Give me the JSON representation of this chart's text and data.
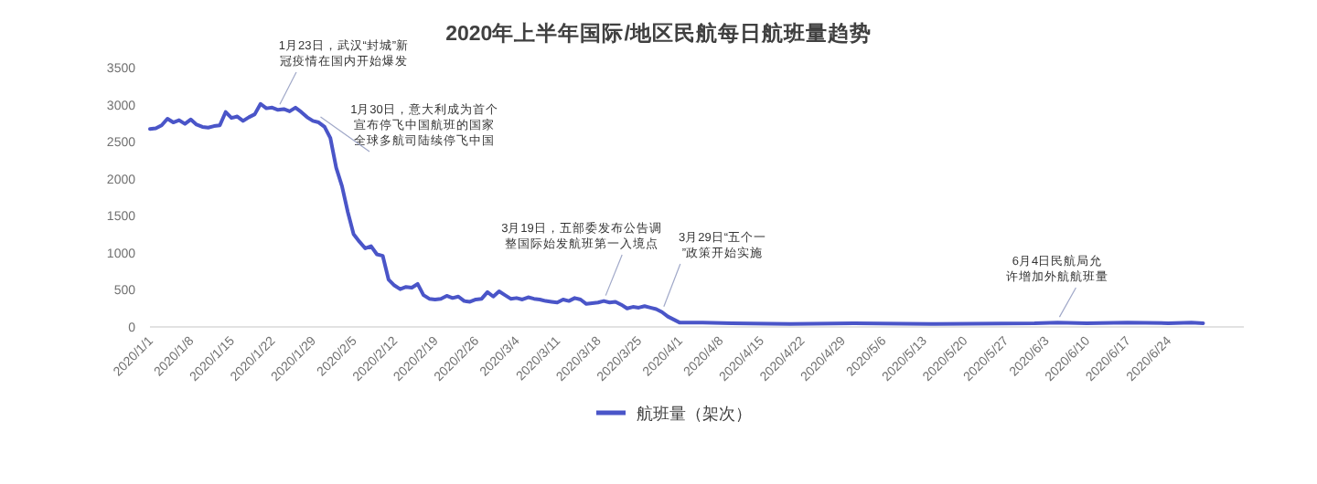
{
  "chart_data": {
    "type": "line",
    "title": "2020年上半年国际/地区民航每日航班量趋势",
    "x": [
      "2020-01-01",
      "2020-01-02",
      "2020-01-03",
      "2020-01-04",
      "2020-01-05",
      "2020-01-06",
      "2020-01-07",
      "2020-01-08",
      "2020-01-09",
      "2020-01-10",
      "2020-01-11",
      "2020-01-12",
      "2020-01-13",
      "2020-01-14",
      "2020-01-15",
      "2020-01-16",
      "2020-01-17",
      "2020-01-18",
      "2020-01-19",
      "2020-01-20",
      "2020-01-21",
      "2020-01-22",
      "2020-01-23",
      "2020-01-24",
      "2020-01-25",
      "2020-01-26",
      "2020-01-27",
      "2020-01-28",
      "2020-01-29",
      "2020-01-30",
      "2020-01-31",
      "2020-02-01",
      "2020-02-02",
      "2020-02-03",
      "2020-02-04",
      "2020-02-05",
      "2020-02-06",
      "2020-02-07",
      "2020-02-08",
      "2020-02-09",
      "2020-02-10",
      "2020-02-11",
      "2020-02-12",
      "2020-02-13",
      "2020-02-14",
      "2020-02-15",
      "2020-02-16",
      "2020-02-17",
      "2020-02-18",
      "2020-02-19",
      "2020-02-20",
      "2020-02-21",
      "2020-02-22",
      "2020-02-23",
      "2020-02-24",
      "2020-02-25",
      "2020-02-26",
      "2020-02-27",
      "2020-02-28",
      "2020-02-29",
      "2020-03-01",
      "2020-03-02",
      "2020-03-03",
      "2020-03-04",
      "2020-03-05",
      "2020-03-06",
      "2020-03-07",
      "2020-03-08",
      "2020-03-09",
      "2020-03-10",
      "2020-03-11",
      "2020-03-12",
      "2020-03-13",
      "2020-03-14",
      "2020-03-15",
      "2020-03-16",
      "2020-03-17",
      "2020-03-18",
      "2020-03-19",
      "2020-03-20",
      "2020-03-21",
      "2020-03-22",
      "2020-03-23",
      "2020-03-24",
      "2020-03-25",
      "2020-03-26",
      "2020-03-27",
      "2020-03-28",
      "2020-03-29",
      "2020-03-30",
      "2020-03-31",
      "2020-04-01",
      "2020-04-05",
      "2020-04-10",
      "2020-04-20",
      "2020-05-01",
      "2020-05-15",
      "2020-06-01",
      "2020-06-05",
      "2020-06-10",
      "2020-06-17",
      "2020-06-24",
      "2020-06-28",
      "2020-06-30"
    ],
    "series": [
      {
        "name": "航班量（架次）",
        "color": "#4a55c8",
        "values": [
          2670,
          2680,
          2720,
          2810,
          2760,
          2790,
          2740,
          2800,
          2730,
          2700,
          2690,
          2710,
          2720,
          2900,
          2820,
          2840,
          2780,
          2830,
          2870,
          3010,
          2950,
          2960,
          2930,
          2940,
          2910,
          2960,
          2900,
          2830,
          2780,
          2760,
          2700,
          2550,
          2150,
          1900,
          1550,
          1250,
          1150,
          1060,
          1090,
          980,
          960,
          640,
          560,
          510,
          540,
          530,
          580,
          430,
          380,
          370,
          380,
          420,
          390,
          410,
          350,
          340,
          370,
          380,
          470,
          410,
          480,
          430,
          380,
          390,
          370,
          400,
          380,
          370,
          350,
          340,
          330,
          370,
          350,
          390,
          370,
          310,
          320,
          330,
          350,
          330,
          340,
          300,
          250,
          270,
          260,
          280,
          260,
          240,
          200,
          140,
          100,
          60,
          60,
          50,
          40,
          50,
          40,
          50,
          60,
          50,
          60,
          50,
          60,
          50
        ]
      }
    ],
    "xlim": [
      "2020-01-01",
      "2020-07-07"
    ],
    "xticks": [
      {
        "value": "2020-01-01",
        "label": "2020/1/1"
      },
      {
        "value": "2020-01-08",
        "label": "2020/1/8"
      },
      {
        "value": "2020-01-15",
        "label": "2020/1/15"
      },
      {
        "value": "2020-01-22",
        "label": "2020/1/22"
      },
      {
        "value": "2020-01-29",
        "label": "2020/1/29"
      },
      {
        "value": "2020-02-05",
        "label": "2020/2/5"
      },
      {
        "value": "2020-02-12",
        "label": "2020/2/12"
      },
      {
        "value": "2020-02-19",
        "label": "2020/2/19"
      },
      {
        "value": "2020-02-26",
        "label": "2020/2/26"
      },
      {
        "value": "2020-03-04",
        "label": "2020/3/4"
      },
      {
        "value": "2020-03-11",
        "label": "2020/3/11"
      },
      {
        "value": "2020-03-18",
        "label": "2020/3/18"
      },
      {
        "value": "2020-03-25",
        "label": "2020/3/25"
      },
      {
        "value": "2020-04-01",
        "label": "2020/4/1"
      },
      {
        "value": "2020-04-08",
        "label": "2020/4/8"
      },
      {
        "value": "2020-04-15",
        "label": "2020/4/15"
      },
      {
        "value": "2020-04-22",
        "label": "2020/4/22"
      },
      {
        "value": "2020-04-29",
        "label": "2020/4/29"
      },
      {
        "value": "2020-05-06",
        "label": "2020/5/6"
      },
      {
        "value": "2020-05-13",
        "label": "2020/5/13"
      },
      {
        "value": "2020-05-20",
        "label": "2020/5/20"
      },
      {
        "value": "2020-05-27",
        "label": "2020/5/27"
      },
      {
        "value": "2020-06-03",
        "label": "2020/6/3"
      },
      {
        "value": "2020-06-10",
        "label": "2020/6/10"
      },
      {
        "value": "2020-06-17",
        "label": "2020/6/17"
      },
      {
        "value": "2020-06-24",
        "label": "2020/6/24"
      }
    ],
    "ylim": [
      0,
      3500
    ],
    "yticks": [
      0,
      500,
      1000,
      1500,
      2000,
      2500,
      3000,
      3500
    ],
    "grid": false,
    "legend": "bottom",
    "marker": "none",
    "line_style": "solid",
    "annotations": [
      {
        "text": "1月23日，武汉“封城”新冠疫情在国内开始爆发",
        "x": "2020-01-23",
        "y": 2930
      },
      {
        "text": "1月30日，意大利成为首个宣布停飞中国航班的国家全球多航司陆续停飞中国",
        "x": "2020-01-30",
        "y": 2760
      },
      {
        "text": "3月19日，五部委发布公告调整国际始发航班第一入境点",
        "x": "2020-03-19",
        "y": 350
      },
      {
        "text": "3月29日“五个一”政策开始实施",
        "x": "2020-03-29",
        "y": 200
      },
      {
        "text": "6月4日民航局允许增加外航航班量",
        "x": "2020-06-05",
        "y": 60
      }
    ]
  }
}
